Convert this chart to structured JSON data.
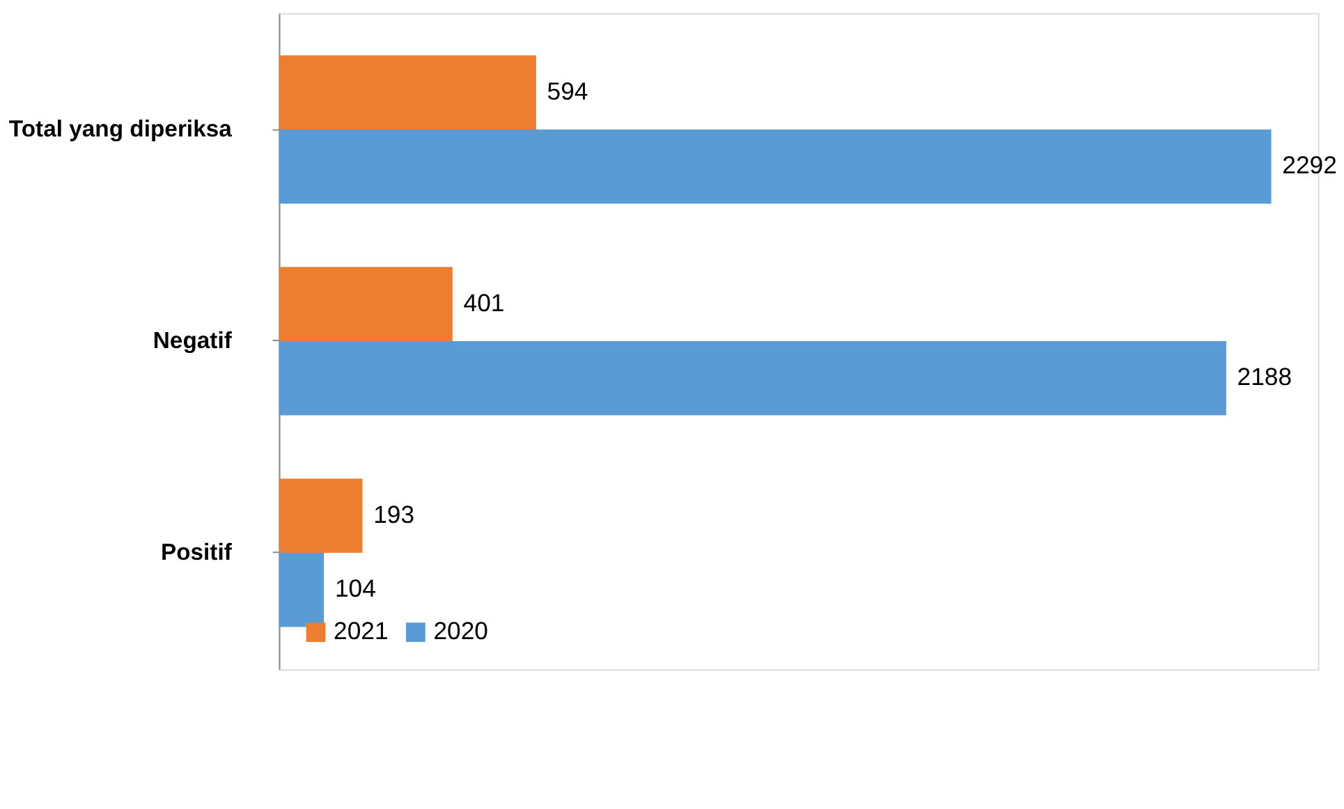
{
  "chart_data": {
    "type": "bar",
    "orientation": "horizontal",
    "categories": [
      "Total yang diperiksa",
      "Negatif",
      "Positif"
    ],
    "series": [
      {
        "name": "2021",
        "color": "#ed7d31",
        "values": [
          594,
          401,
          193
        ]
      },
      {
        "name": "2020",
        "color": "#5b9bd5",
        "values": [
          2292,
          2188,
          104
        ]
      }
    ],
    "data_labels": true,
    "legend": "bottom left",
    "grid": false,
    "tick_labels": "y"
  }
}
